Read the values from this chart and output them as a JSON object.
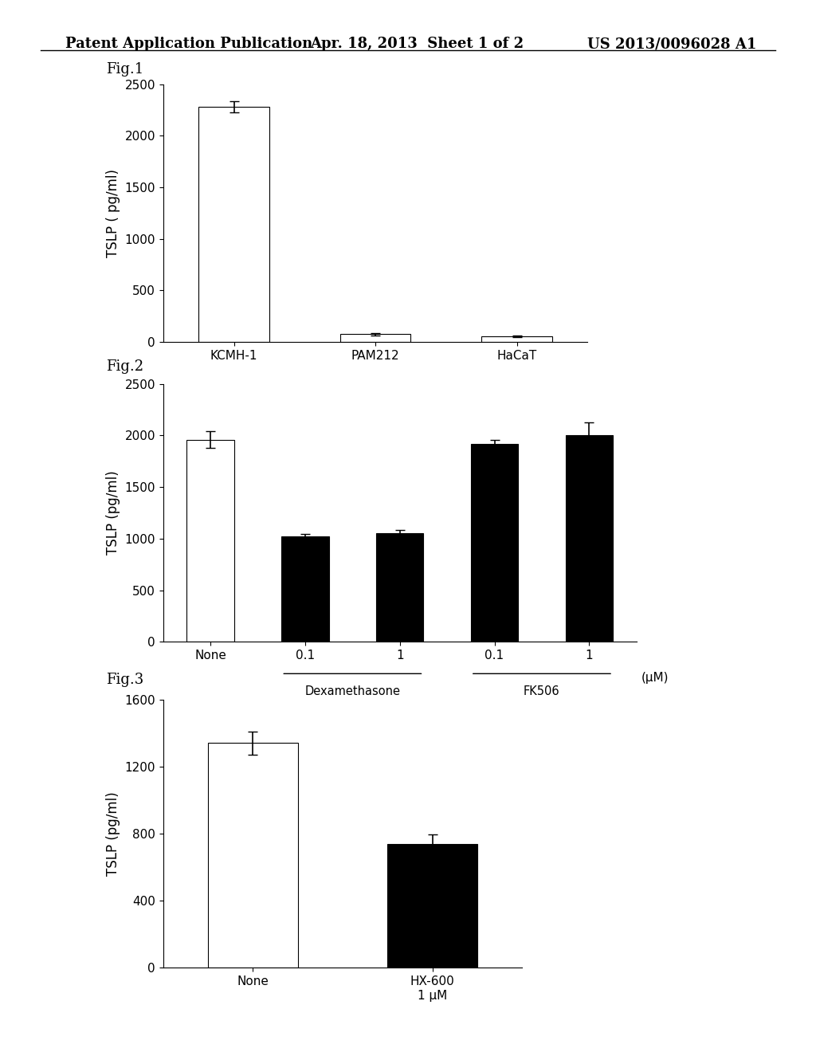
{
  "header_left": "Patent Application Publication",
  "header_mid": "Apr. 18, 2013  Sheet 1 of 2",
  "header_right": "US 2013/0096028 A1",
  "fig1": {
    "label": "Fig.1",
    "categories": [
      "KCMH-1",
      "PAM212",
      "HaCaT"
    ],
    "values": [
      2280,
      75,
      55
    ],
    "errors": [
      55,
      10,
      8
    ],
    "bar_colors": [
      "white",
      "white",
      "white"
    ],
    "bar_edgecolors": [
      "black",
      "black",
      "black"
    ],
    "ylabel": "TSLP ( pg/ml)",
    "ylim": [
      0,
      2500
    ],
    "yticks": [
      0,
      500,
      1000,
      1500,
      2000,
      2500
    ]
  },
  "fig2": {
    "label": "Fig.2",
    "categories": [
      "None",
      "0.1",
      "1",
      "0.1",
      "1"
    ],
    "values": [
      1960,
      1020,
      1050,
      1920,
      2000
    ],
    "errors": [
      80,
      25,
      30,
      35,
      130
    ],
    "bar_colors": [
      "white",
      "black",
      "black",
      "black",
      "black"
    ],
    "bar_edgecolors": [
      "black",
      "black",
      "black",
      "black",
      "black"
    ],
    "ylabel": "TSLP (pg/ml)",
    "ylim": [
      0,
      2500
    ],
    "yticks": [
      0,
      500,
      1000,
      1500,
      2000,
      2500
    ],
    "xlabel_uM": "(μM)",
    "group_label_dex": "Dexamethasone",
    "group_label_fk": "FK506"
  },
  "fig3": {
    "label": "Fig.3",
    "categories": [
      "None",
      "HX-600\n1 μM"
    ],
    "values": [
      1340,
      740
    ],
    "errors": [
      70,
      55
    ],
    "bar_colors": [
      "white",
      "black"
    ],
    "bar_edgecolors": [
      "black",
      "black"
    ],
    "ylabel": "TSLP (pg/ml)",
    "ylim": [
      0,
      1600
    ],
    "yticks": [
      0,
      400,
      800,
      1200,
      1600
    ]
  },
  "background_color": "white",
  "tick_fontsize": 11,
  "label_fontsize": 12,
  "header_fontsize": 13,
  "fig_label_fontsize": 13,
  "bar_width": 0.5
}
